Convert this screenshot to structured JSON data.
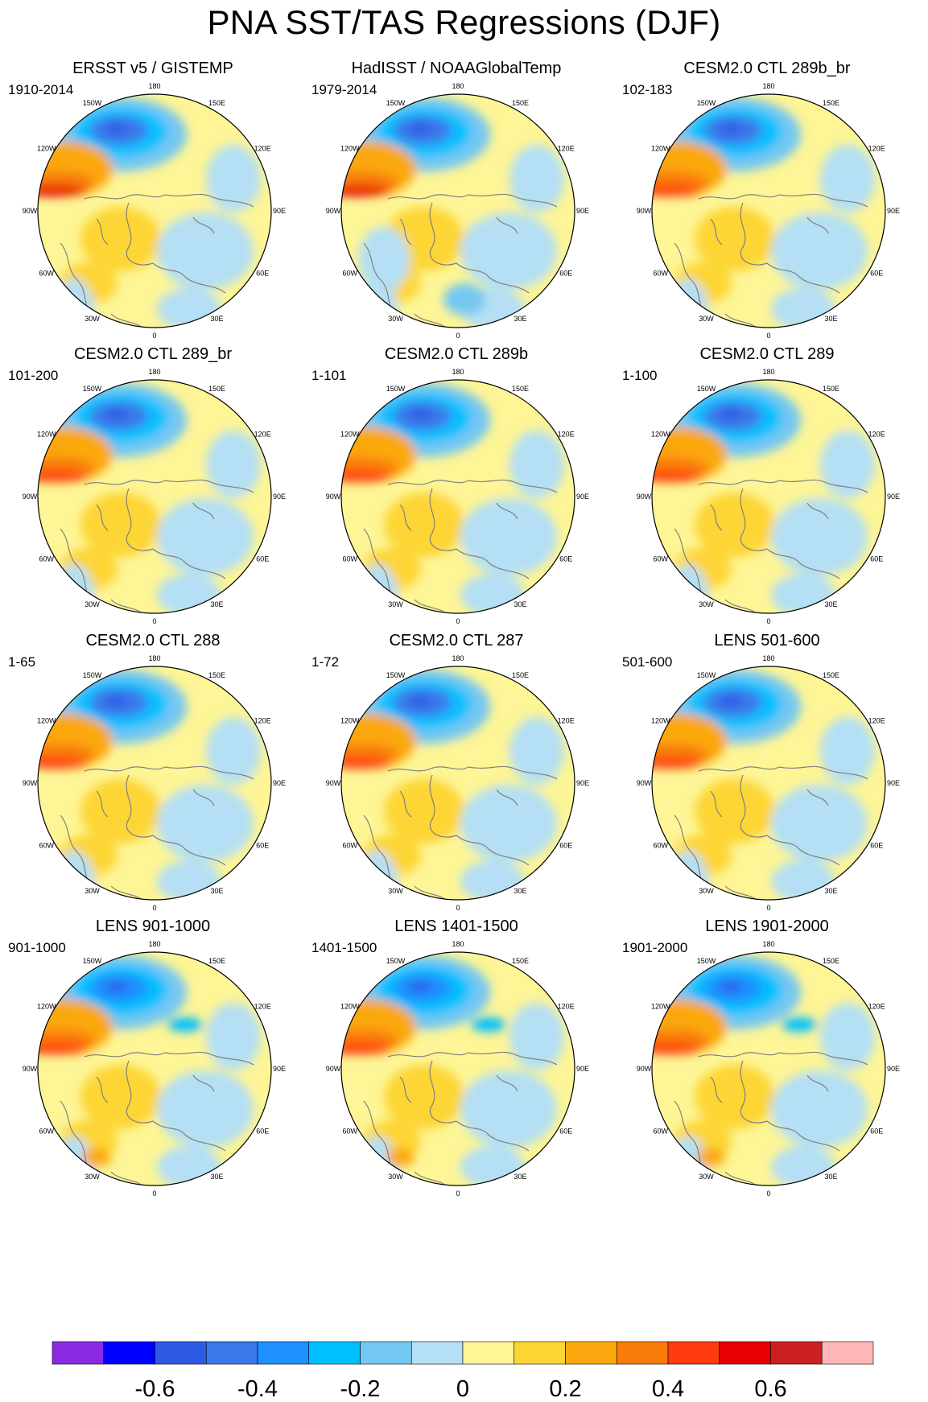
{
  "title": "PNA SST/TAS Regressions (DJF)",
  "longitude_labels": [
    "180",
    "150E",
    "120E",
    "90E",
    "60E",
    "30E",
    "0",
    "30W",
    "60W",
    "90W",
    "120W",
    "150W"
  ],
  "panels": [
    {
      "title": "ERSST v5 / GISTEMP",
      "period": "1910-2014",
      "pattern": "obs"
    },
    {
      "title": "HadISST / NOAAGlobalTemp",
      "period": "1979-2014",
      "pattern": "obs2"
    },
    {
      "title": "CESM2.0 CTL 289b_br",
      "period": "102-183",
      "pattern": "model"
    },
    {
      "title": "CESM2.0 CTL 289_br",
      "period": "101-200",
      "pattern": "model"
    },
    {
      "title": "CESM2.0 CTL 289b",
      "period": "1-101",
      "pattern": "model"
    },
    {
      "title": "CESM2.0 CTL 289",
      "period": "1-100",
      "pattern": "model"
    },
    {
      "title": "CESM2.0 CTL 288",
      "period": "1-65",
      "pattern": "model"
    },
    {
      "title": "CESM2.0 CTL 287",
      "period": "1-72",
      "pattern": "model"
    },
    {
      "title": "LENS 501-600",
      "period": "501-600",
      "pattern": "model"
    },
    {
      "title": "LENS 901-1000",
      "period": "901-1000",
      "pattern": "lens"
    },
    {
      "title": "LENS 1401-1500",
      "period": "1401-1500",
      "pattern": "lens"
    },
    {
      "title": "LENS 1901-2000",
      "period": "1901-2000",
      "pattern": "lens"
    }
  ],
  "colorbar": {
    "colors": [
      "#8a2be2",
      "#0000ff",
      "#2e5be6",
      "#3a78e8",
      "#1e90ff",
      "#00bfff",
      "#74c7f2",
      "#b4dff4",
      "#fdf596",
      "#fdd535",
      "#fba80f",
      "#f97b0a",
      "#ff3c0f",
      "#e60000",
      "#cc2020",
      "#ffb6b6"
    ],
    "labels": [
      "-0.6",
      "-0.4",
      "-0.2",
      "0",
      "0.2",
      "0.4",
      "0.6"
    ]
  },
  "palette": {
    "land_warm": "#fdf596",
    "ocean_cool": "#b4dff4",
    "coast": "#808080"
  }
}
